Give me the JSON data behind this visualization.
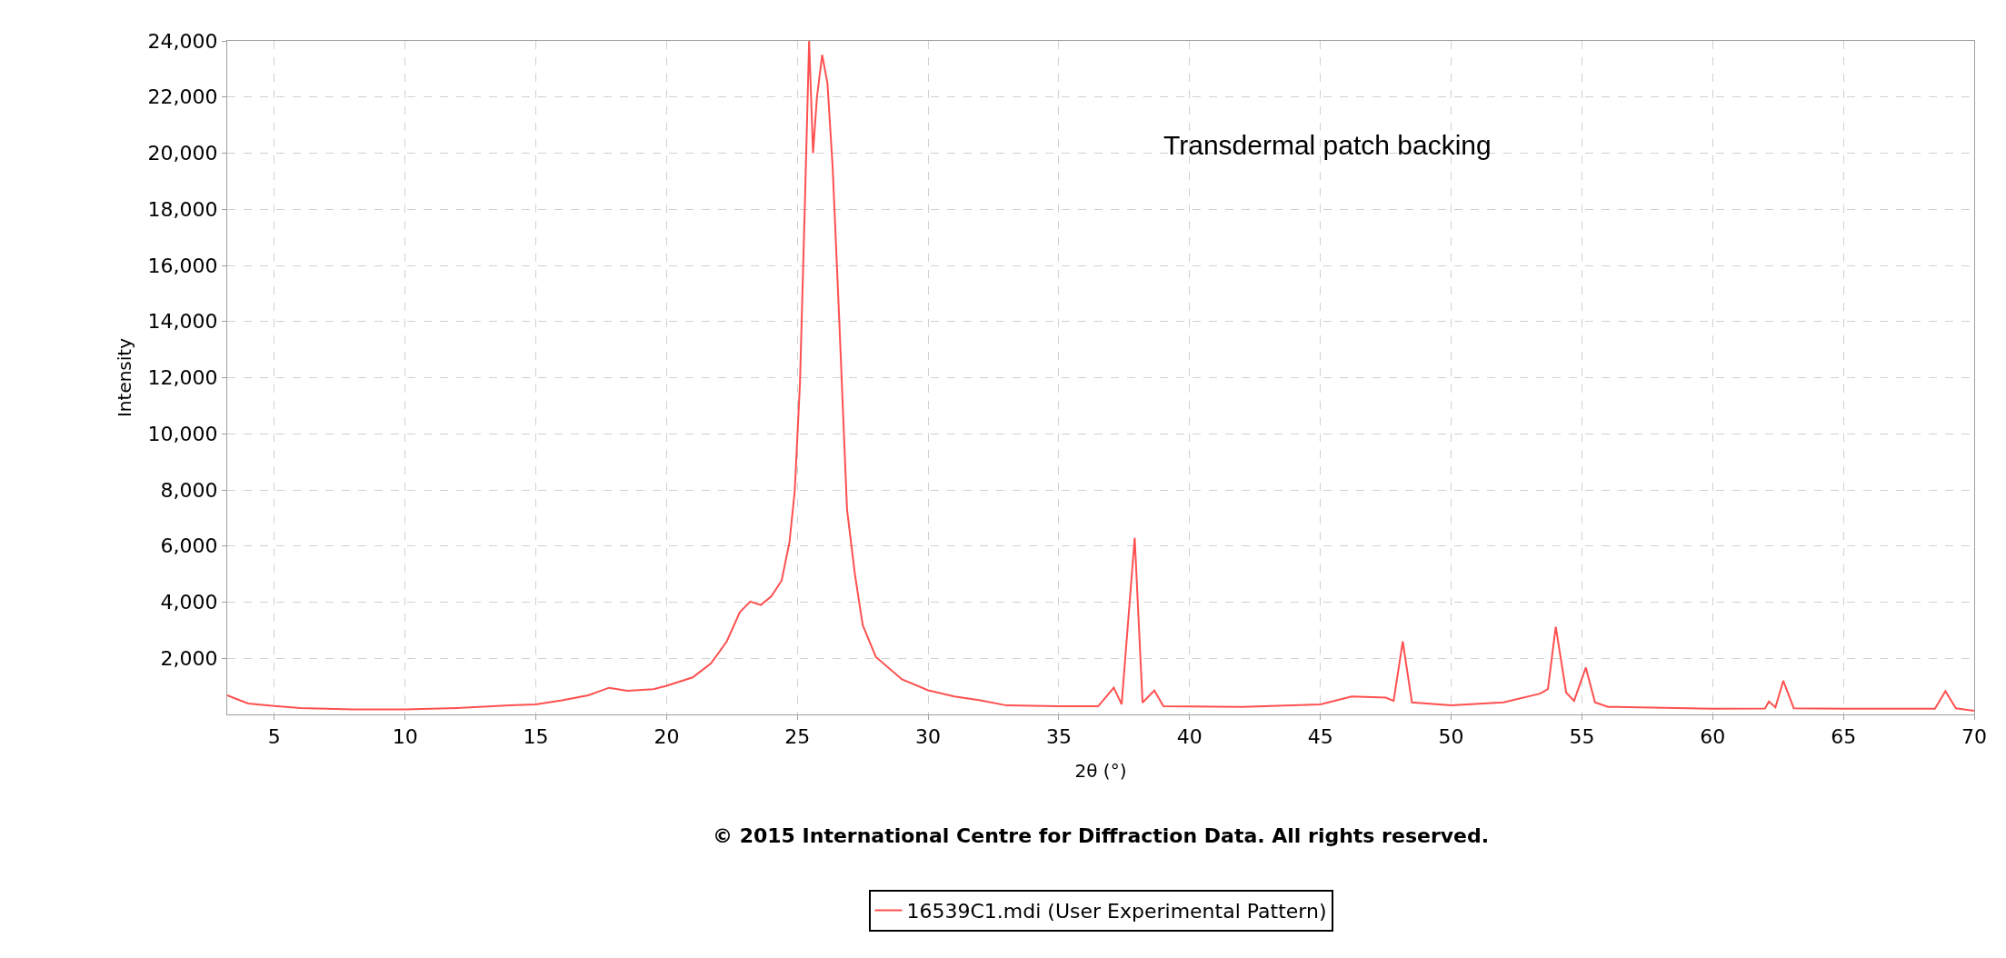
{
  "chart_data": {
    "type": "line",
    "xlabel": "2θ (°)",
    "ylabel": "Intensity",
    "annotations": [
      "Transdermal patch backing",
      "© 2015 International Centre for Diffraction Data. All rights reserved."
    ],
    "x": [
      3.2,
      4,
      5,
      6,
      8,
      10,
      12,
      14,
      15,
      16,
      17,
      17.8,
      18.5,
      19.5,
      20,
      21,
      21.7,
      22.3,
      22.8,
      23.2,
      23.6,
      24,
      24.4,
      24.7,
      24.9,
      25.1,
      25.3,
      25.45,
      25.6,
      25.75,
      25.95,
      26.15,
      26.35,
      26.6,
      26.9,
      27.2,
      27.5,
      28,
      29,
      30,
      31,
      32,
      33,
      35,
      36.5,
      37.1,
      37.4,
      37.9,
      38.2,
      38.65,
      39,
      42,
      45,
      46.2,
      47.5,
      47.8,
      48.15,
      48.5,
      50,
      52,
      53.4,
      53.7,
      54,
      54.4,
      54.7,
      55.15,
      55.5,
      56,
      60,
      62,
      62.15,
      62.4,
      62.7,
      63.1,
      65,
      68.5,
      68.9,
      69.3,
      70
    ],
    "series": [
      {
        "name": "16539C1.mdi (User Experimental Pattern)",
        "color": "#ff5050",
        "values": [
          680,
          390,
          300,
          230,
          180,
          180,
          230,
          320,
          360,
          500,
          680,
          950,
          840,
          900,
          1020,
          1320,
          1820,
          2600,
          3640,
          4020,
          3900,
          4200,
          4770,
          6140,
          7950,
          11800,
          18600,
          24000,
          20000,
          22000,
          23500,
          22500,
          19500,
          14100,
          7300,
          5000,
          3180,
          2050,
          1250,
          860,
          640,
          500,
          320,
          290,
          290,
          950,
          360,
          6290,
          420,
          850,
          290,
          270,
          360,
          640,
          600,
          480,
          2600,
          430,
          320,
          430,
          740,
          900,
          3120,
          780,
          480,
          1670,
          430,
          270,
          200,
          210,
          460,
          250,
          1200,
          220,
          200,
          200,
          830,
          220,
          130
        ]
      }
    ],
    "xlim": [
      3.2,
      70
    ],
    "xticks": [
      5,
      10,
      15,
      20,
      25,
      30,
      35,
      40,
      45,
      50,
      55,
      60,
      65,
      70
    ],
    "ylim": [
      0,
      24000
    ],
    "yticks": [
      {
        "value": 2000,
        "label": "2,000"
      },
      {
        "value": 4000,
        "label": "4,000"
      },
      {
        "value": 6000,
        "label": "6,000"
      },
      {
        "value": 8000,
        "label": "8,000"
      },
      {
        "value": 10000,
        "label": "10,000"
      },
      {
        "value": 12000,
        "label": "12,000"
      },
      {
        "value": 14000,
        "label": "14,000"
      },
      {
        "value": 16000,
        "label": "16,000"
      },
      {
        "value": 18000,
        "label": "18,000"
      },
      {
        "value": 20000,
        "label": "20,000"
      },
      {
        "value": 22000,
        "label": "22,000"
      },
      {
        "value": 24000,
        "label": "24,000"
      }
    ],
    "grid": true,
    "legend": "bottom",
    "marker": "none",
    "line_style": "solid"
  }
}
